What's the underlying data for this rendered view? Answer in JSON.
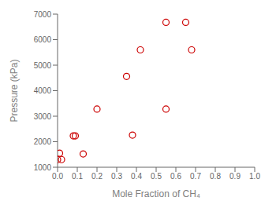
{
  "chart_data": {
    "type": "scatter",
    "xlabel": "Mole Fraction of CH₄",
    "ylabel": "Pressure (kPa)",
    "x": [
      0.0,
      0.01,
      0.02,
      0.08,
      0.09,
      0.13,
      0.2,
      0.35,
      0.38,
      0.42,
      0.55,
      0.55,
      0.65,
      0.68
    ],
    "values": [
      1300,
      1550,
      1300,
      2230,
      2230,
      1520,
      3280,
      4560,
      2260,
      5600,
      6680,
      3280,
      6680,
      5600
    ],
    "color": "#cc0000",
    "marker": "circle",
    "xlim": [
      0.0,
      1.0
    ],
    "ylim": [
      1000,
      7000
    ],
    "xticks": [
      {
        "value": 0.0,
        "label": "0.0"
      },
      0.1,
      0.2,
      0.3,
      0.4,
      0.5,
      0.6,
      0.7,
      0.8,
      0.9,
      {
        "value": 1.0,
        "label": "1.0"
      }
    ],
    "yticks": [
      1000,
      2000,
      3000,
      4000,
      5000,
      6000,
      7000
    ],
    "grid": false
  }
}
